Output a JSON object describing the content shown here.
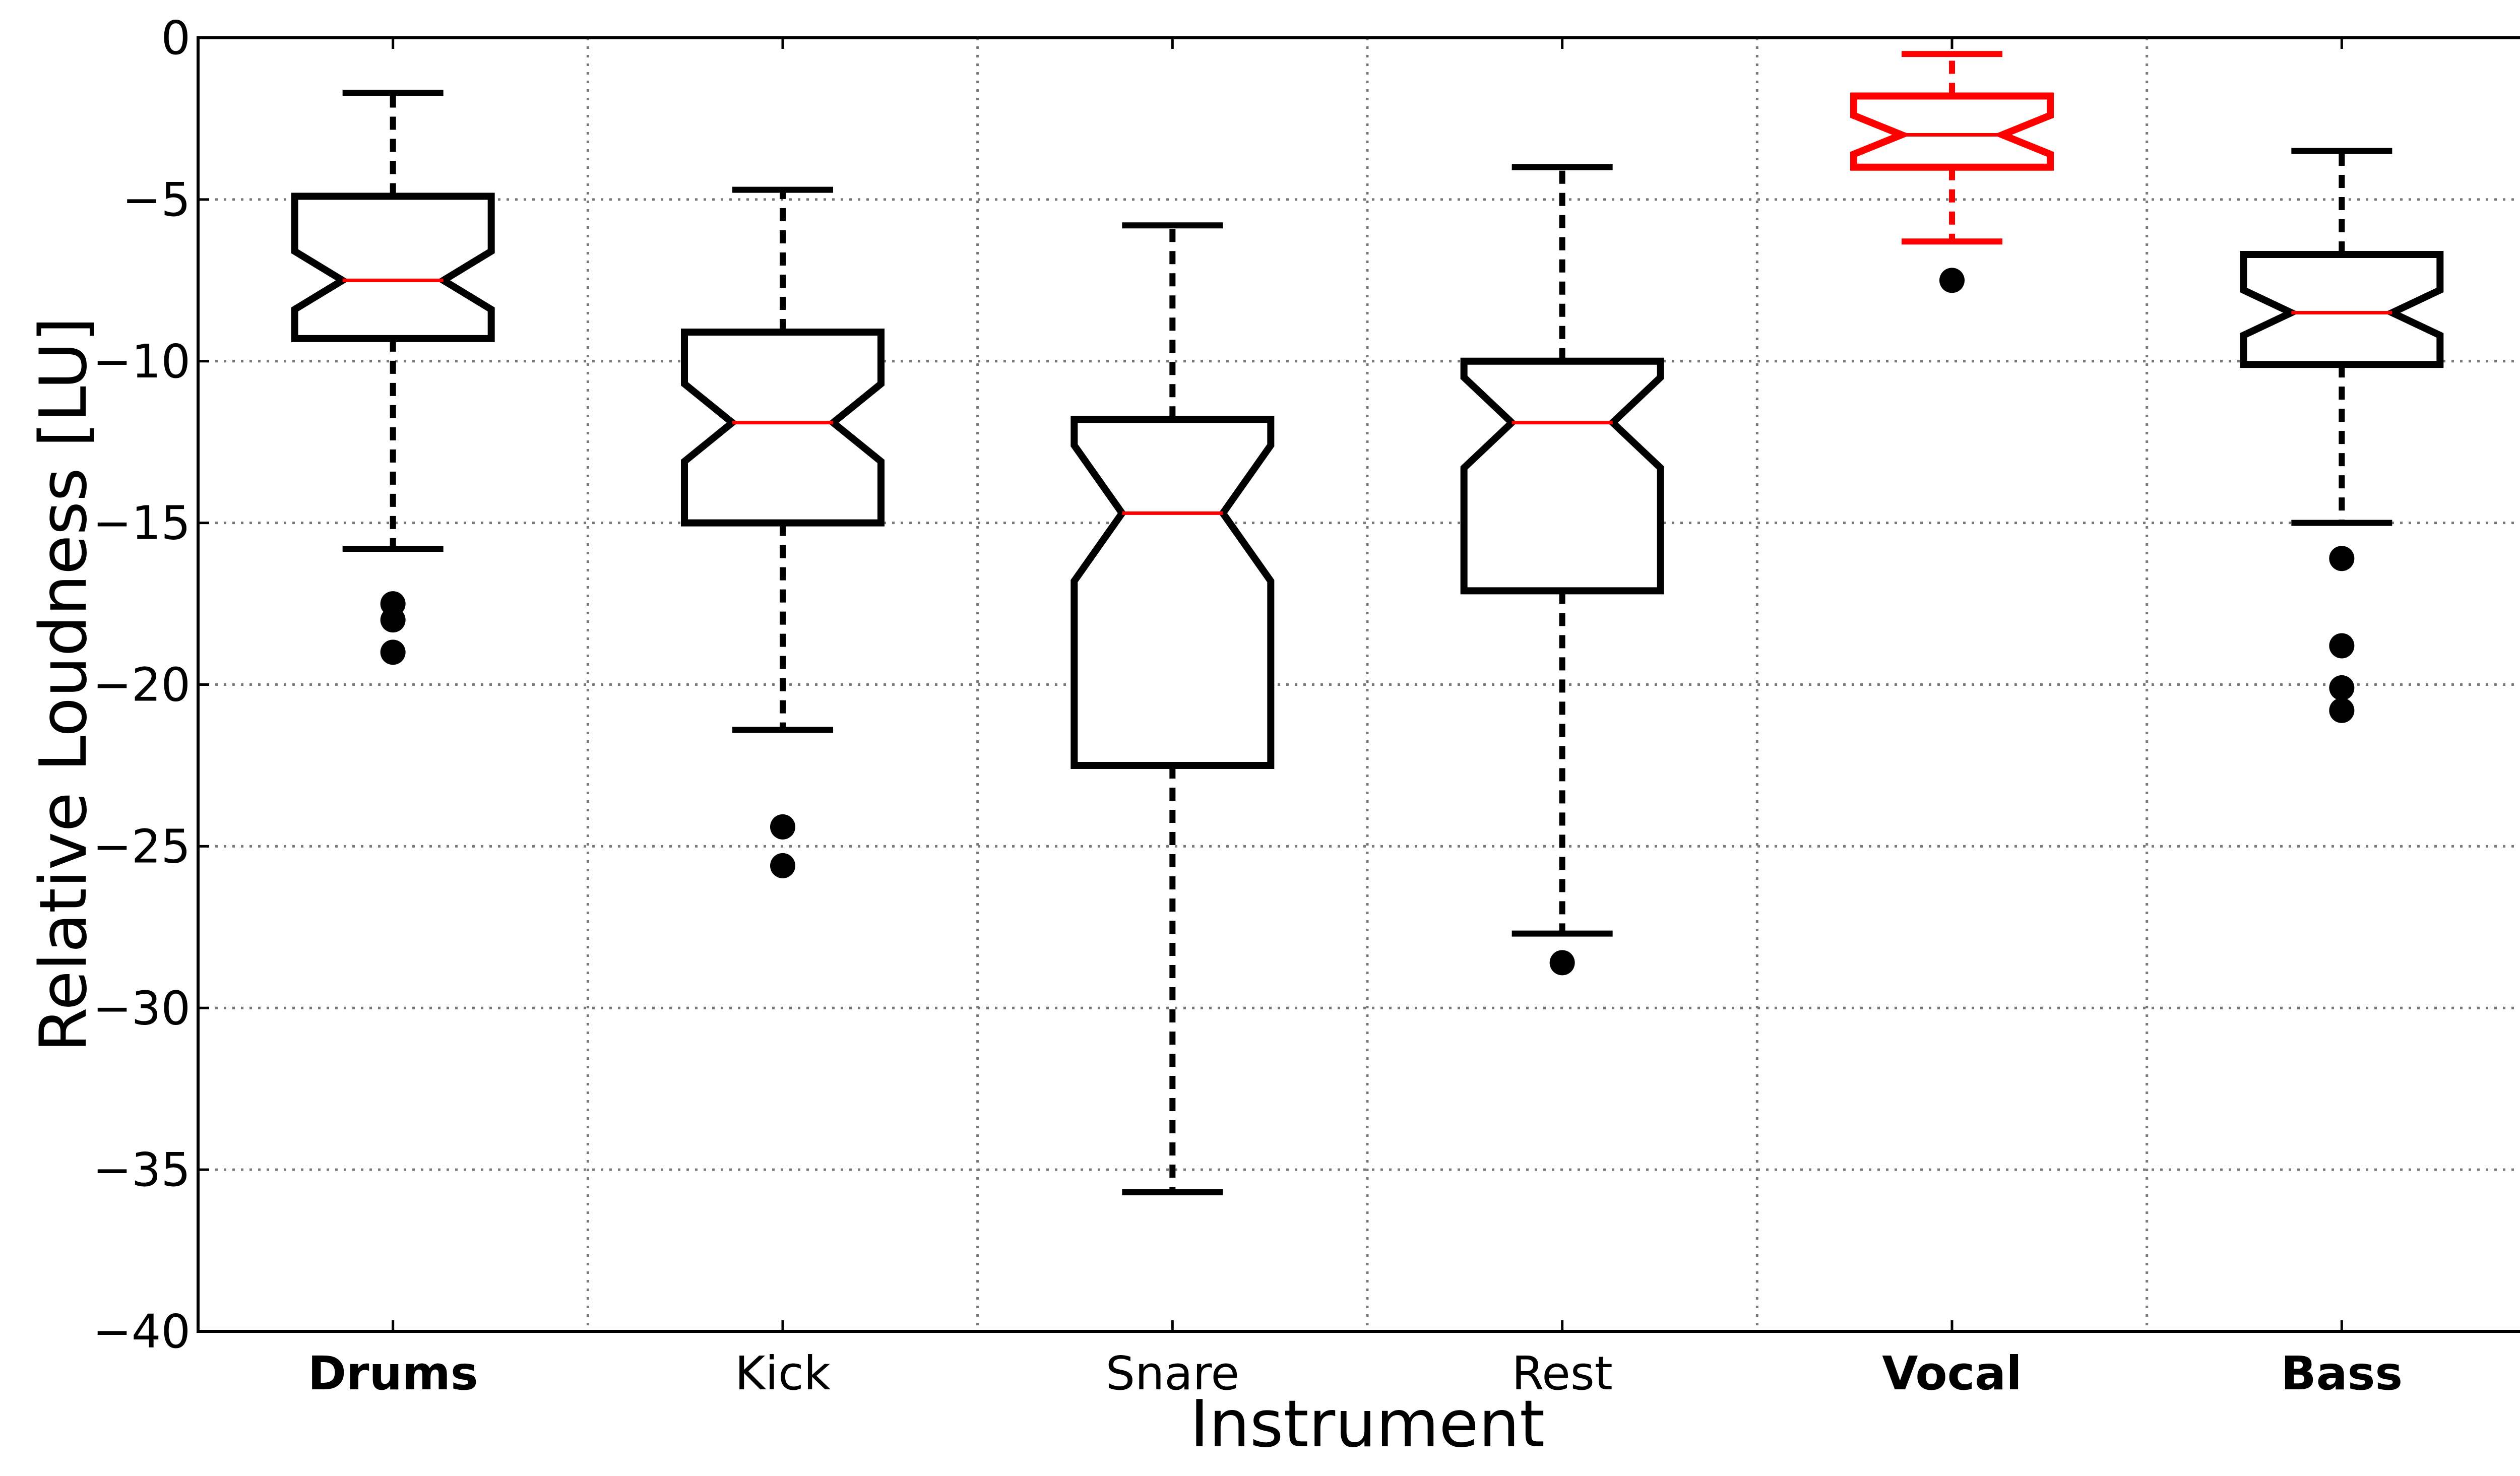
{
  "chart_data": {
    "type": "boxplot",
    "notched": true,
    "xlabel": "Instrument",
    "ylabel": "Relative Loudness [LU]",
    "ylim": [
      -40,
      0
    ],
    "yticks": [
      0,
      -5,
      -10,
      -15,
      -20,
      -25,
      -30,
      -35,
      -40
    ],
    "ytick_labels": [
      "0",
      "−5",
      "−10",
      "−15",
      "−20",
      "−25",
      "−30",
      "−35",
      "−40"
    ],
    "grid": true,
    "categories": [
      "Drums",
      "Kick",
      "Snare",
      "Rest",
      "Vocal",
      "Bass"
    ],
    "bold_categories": [
      "Drums",
      "Vocal",
      "Bass"
    ],
    "boxes": [
      {
        "name": "Drums",
        "whisker_low": -15.8,
        "q1": -9.3,
        "median": -7.5,
        "q3": -4.9,
        "whisker_high": -1.7,
        "notch_low": -8.4,
        "notch_high": -6.6,
        "outliers": [
          -17.5,
          -18.0,
          -19.0
        ],
        "color": "#000000"
      },
      {
        "name": "Kick",
        "whisker_low": -21.4,
        "q1": -15.0,
        "median": -11.9,
        "q3": -9.1,
        "whisker_high": -4.7,
        "notch_low": -13.1,
        "notch_high": -10.7,
        "outliers": [
          -24.4,
          -25.6
        ],
        "color": "#000000"
      },
      {
        "name": "Snare",
        "whisker_low": -35.7,
        "q1": -22.5,
        "median": -14.7,
        "q3": -11.8,
        "whisker_high": -5.8,
        "notch_low": -16.8,
        "notch_high": -12.6,
        "outliers": [],
        "color": "#000000"
      },
      {
        "name": "Rest",
        "whisker_low": -27.7,
        "q1": -17.1,
        "median": -11.9,
        "q3": -10.0,
        "whisker_high": -4.0,
        "notch_low": -13.3,
        "notch_high": -10.5,
        "outliers": [
          -28.6
        ],
        "color": "#000000"
      },
      {
        "name": "Vocal",
        "whisker_low": -6.3,
        "q1": -4.0,
        "median": -3.0,
        "q3": -1.8,
        "whisker_high": -0.5,
        "notch_low": -3.6,
        "notch_high": -2.4,
        "outliers": [
          -7.5
        ],
        "color": "#ff0000"
      },
      {
        "name": "Bass",
        "whisker_low": -15.0,
        "q1": -10.1,
        "median": -8.5,
        "q3": -6.7,
        "whisker_high": -3.5,
        "notch_low": -9.2,
        "notch_high": -7.8,
        "outliers": [
          -16.1,
          -18.8,
          -20.1,
          -20.8
        ],
        "color": "#000000"
      }
    ],
    "median_color": "#ff0000",
    "outlier_color": "#000000"
  }
}
